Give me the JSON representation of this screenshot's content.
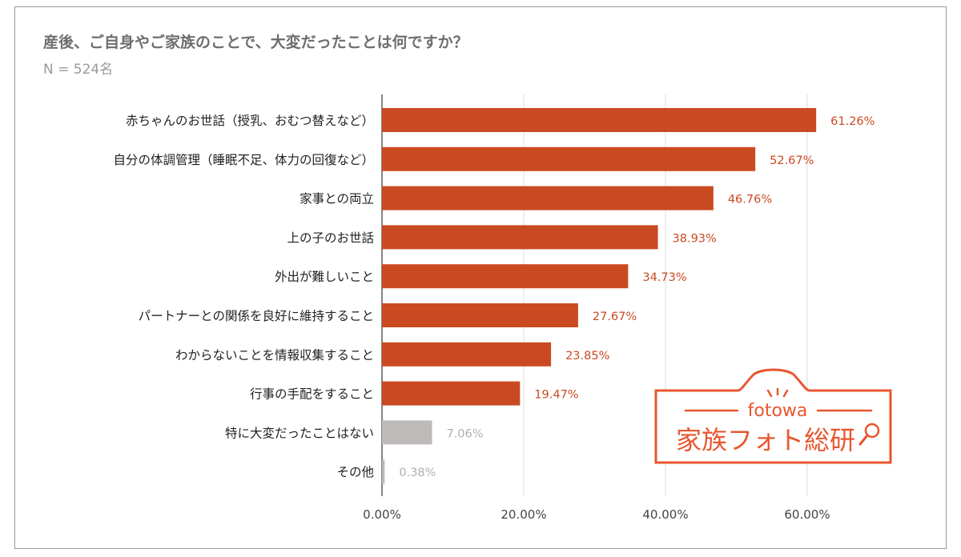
{
  "chart_data": {
    "type": "bar",
    "orientation": "horizontal",
    "title": "産後、ご自身やご家族のことで、大変だったことは何ですか？",
    "subtitle": "N = 524名",
    "categories": [
      "赤ちゃんのお世話（授乳、おむつ替えなど）",
      "自分の体調管理（睡眠不足、体力の回復など）",
      "家事との両立",
      "上の子のお世話",
      "外出が難しいこと",
      "パートナーとの関係を良好に維持すること",
      "わからないことを情報収集すること",
      "行事の手配をすること",
      "特に大変だったことはない",
      "その他"
    ],
    "values": [
      61.26,
      52.67,
      46.76,
      38.93,
      34.73,
      27.67,
      23.85,
      19.47,
      7.06,
      0.38
    ],
    "data_labels": [
      "61.26%",
      "52.67%",
      "46.76%",
      "38.93%",
      "34.73%",
      "27.67%",
      "23.85%",
      "19.47%",
      "7.06%",
      "0.38%"
    ],
    "bar_colors": [
      "#c94a21",
      "#c94a21",
      "#c94a21",
      "#c94a21",
      "#c94a21",
      "#c94a21",
      "#c94a21",
      "#c94a21",
      "#bdbab9",
      "#bdbab9"
    ],
    "label_colors": [
      "#c94a21",
      "#c94a21",
      "#c94a21",
      "#c94a21",
      "#c94a21",
      "#c94a21",
      "#c94a21",
      "#c94a21",
      "#b0b0b0",
      "#b0b0b0"
    ],
    "xlim": [
      0,
      70
    ],
    "xticks": [
      0,
      20,
      40,
      60
    ],
    "xtick_labels": [
      "0.00%",
      "20.00%",
      "40.00%",
      "60.00%"
    ],
    "grid": true
  },
  "logo": {
    "brand": "fotowa",
    "name": "家族フォト総研",
    "color": "#e8562e"
  }
}
